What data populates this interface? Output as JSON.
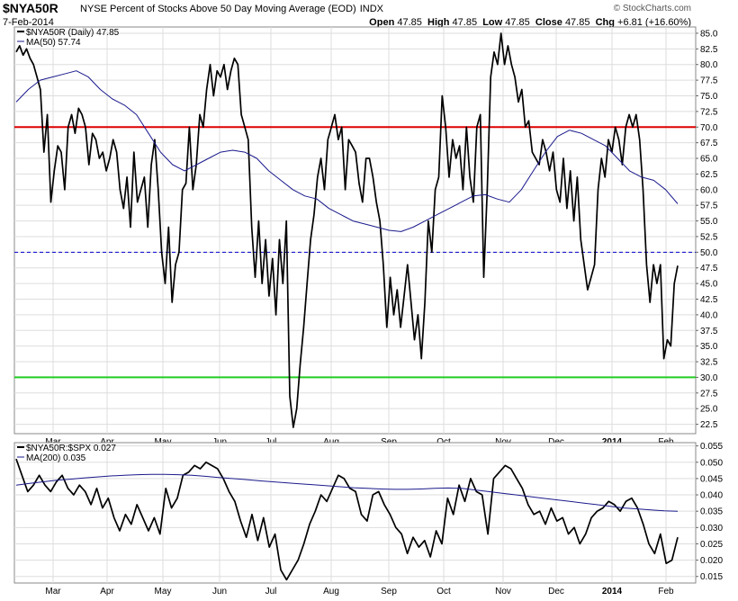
{
  "header": {
    "symbol": "$NYA50R",
    "title": "NYSE Percent of Stocks Above 50 Day Moving Average (EOD)",
    "exchange": "INDX",
    "date": "7-Feb-2014",
    "credit": "© StockCharts.com",
    "open_label": "Open",
    "open_value": "47.85",
    "high_label": "High",
    "high_value": "47.85",
    "low_label": "Low",
    "low_value": "47.85",
    "close_label": "Close",
    "close_value": "47.85",
    "chg_label": "Chg",
    "chg_value": "+6.81 (+16.60%)"
  },
  "colors": {
    "price": "#000000",
    "ma": "#1a1a8c",
    "upper_line": "#dd0000",
    "lower_line": "#22cc22",
    "mid_line": "#0000cc",
    "grid": "#dddddd"
  },
  "chart_data": [
    {
      "type": "line",
      "x_labels": [
        "Mar",
        "Apr",
        "May",
        "Jun",
        "Jul",
        "Aug",
        "Sep",
        "Oct",
        "Nov",
        "Dec",
        "2014",
        "Feb"
      ],
      "ylim": [
        21,
        86
      ],
      "yticks": [
        "22.5",
        "25.0",
        "27.5",
        "30.0",
        "32.5",
        "35.0",
        "37.5",
        "40.0",
        "42.5",
        "45.0",
        "47.5",
        "50.0",
        "52.5",
        "55.0",
        "57.5",
        "60.0",
        "62.5",
        "65.0",
        "67.5",
        "70.0",
        "72.5",
        "75.0",
        "77.5",
        "80.0",
        "82.5",
        "85.0"
      ],
      "reference_lines": [
        70,
        50,
        30
      ],
      "legend_position": "top-left",
      "series": [
        {
          "name": "$NYA50R (Daily) 47.85",
          "values": [
            82,
            83,
            81.5,
            82.5,
            81,
            80,
            78,
            76,
            66,
            72,
            58,
            63,
            67,
            66,
            60,
            70,
            72,
            69,
            73,
            72,
            70,
            64,
            69,
            68,
            65,
            66,
            63,
            65,
            68,
            66,
            60,
            57,
            62,
            54,
            66,
            58,
            60,
            62,
            54,
            64,
            68,
            60,
            50,
            45,
            54,
            42,
            48,
            50,
            60,
            61,
            70,
            60,
            64,
            72,
            70,
            76,
            80,
            75,
            79,
            78,
            80,
            76,
            79,
            81,
            80,
            72,
            70,
            68,
            54,
            46,
            55,
            45,
            52,
            43,
            49,
            40,
            52,
            45,
            55,
            27,
            22,
            25,
            32,
            38,
            45,
            52,
            56,
            62,
            65,
            60,
            68,
            70,
            72,
            68,
            70,
            60,
            68,
            67,
            66,
            61,
            58,
            65,
            65,
            62,
            58,
            55,
            48,
            38,
            46,
            40,
            44,
            38,
            43,
            48,
            42,
            36,
            40,
            33,
            42,
            55,
            50,
            60,
            62,
            75,
            70,
            62,
            68,
            65,
            67,
            60,
            70,
            62,
            58,
            70,
            72,
            46,
            60,
            78,
            82,
            80,
            85,
            80,
            83,
            80,
            78,
            74,
            76,
            70,
            71,
            66,
            65,
            64,
            68,
            66,
            63,
            66,
            60,
            58,
            65,
            57,
            63,
            55,
            62,
            52,
            48,
            44,
            46,
            48,
            60,
            65,
            62,
            68,
            66,
            70,
            68,
            64,
            70,
            72,
            70,
            72,
            68,
            60,
            48,
            42,
            48,
            45,
            48,
            33,
            36,
            35,
            45,
            47.85
          ]
        },
        {
          "name": "MA(50) 57.74",
          "values": [
            74,
            76,
            77.5,
            78,
            78.5,
            79,
            78,
            76,
            74.5,
            73.5,
            72,
            69,
            66,
            64,
            63,
            64,
            65,
            66,
            66.3,
            66,
            65,
            63,
            61.5,
            60,
            59,
            58.5,
            57,
            56,
            55,
            54.5,
            54,
            53.5,
            53.3,
            54,
            55,
            56,
            57,
            58,
            59,
            59.2,
            58.5,
            58,
            60,
            63,
            66,
            68.5,
            69.5,
            69,
            68,
            67,
            65,
            63,
            62,
            61.5,
            60,
            57.74
          ]
        }
      ]
    },
    {
      "type": "line",
      "x_labels": [
        "Mar",
        "Apr",
        "May",
        "Jun",
        "Jul",
        "Aug",
        "Sep",
        "Oct",
        "Nov",
        "Dec",
        "2014",
        "Feb"
      ],
      "ylim": [
        0.013,
        0.056
      ],
      "yticks": [
        "0.015",
        "0.020",
        "0.025",
        "0.030",
        "0.035",
        "0.040",
        "0.045",
        "0.050",
        "0.055"
      ],
      "legend_position": "top-left",
      "series": [
        {
          "name": "$NYA50R:$SPX 0.027",
          "values": [
            0.051,
            0.046,
            0.041,
            0.043,
            0.046,
            0.043,
            0.041,
            0.044,
            0.046,
            0.042,
            0.04,
            0.043,
            0.041,
            0.037,
            0.042,
            0.036,
            0.039,
            0.033,
            0.029,
            0.034,
            0.031,
            0.037,
            0.033,
            0.029,
            0.033,
            0.028,
            0.042,
            0.036,
            0.039,
            0.046,
            0.047,
            0.049,
            0.048,
            0.05,
            0.049,
            0.048,
            0.045,
            0.041,
            0.038,
            0.032,
            0.027,
            0.034,
            0.026,
            0.033,
            0.024,
            0.028,
            0.017,
            0.014,
            0.017,
            0.02,
            0.025,
            0.031,
            0.035,
            0.04,
            0.038,
            0.042,
            0.046,
            0.045,
            0.042,
            0.041,
            0.034,
            0.032,
            0.04,
            0.041,
            0.037,
            0.034,
            0.03,
            0.028,
            0.022,
            0.027,
            0.024,
            0.026,
            0.021,
            0.029,
            0.025,
            0.039,
            0.034,
            0.043,
            0.038,
            0.045,
            0.041,
            0.04,
            0.028,
            0.045,
            0.047,
            0.049,
            0.048,
            0.045,
            0.042,
            0.037,
            0.034,
            0.035,
            0.031,
            0.036,
            0.032,
            0.033,
            0.028,
            0.03,
            0.025,
            0.028,
            0.033,
            0.035,
            0.036,
            0.038,
            0.037,
            0.035,
            0.038,
            0.039,
            0.036,
            0.031,
            0.025,
            0.022,
            0.028,
            0.019,
            0.02,
            0.027
          ]
        },
        {
          "name": "MA(200) 0.035",
          "values": [
            0.043,
            0.0435,
            0.044,
            0.0445,
            0.0448,
            0.0452,
            0.0455,
            0.0458,
            0.046,
            0.0462,
            0.0463,
            0.0463,
            0.0462,
            0.046,
            0.0457,
            0.0453,
            0.045,
            0.0447,
            0.0443,
            0.044,
            0.0437,
            0.0434,
            0.0431,
            0.0428,
            0.0425,
            0.0422,
            0.042,
            0.0418,
            0.0417,
            0.0417,
            0.0418,
            0.042,
            0.0421,
            0.042,
            0.0415,
            0.041,
            0.0405,
            0.04,
            0.0395,
            0.039,
            0.0385,
            0.038,
            0.0375,
            0.037,
            0.0365,
            0.036,
            0.0357,
            0.0354,
            0.0351,
            0.035
          ]
        }
      ]
    }
  ]
}
